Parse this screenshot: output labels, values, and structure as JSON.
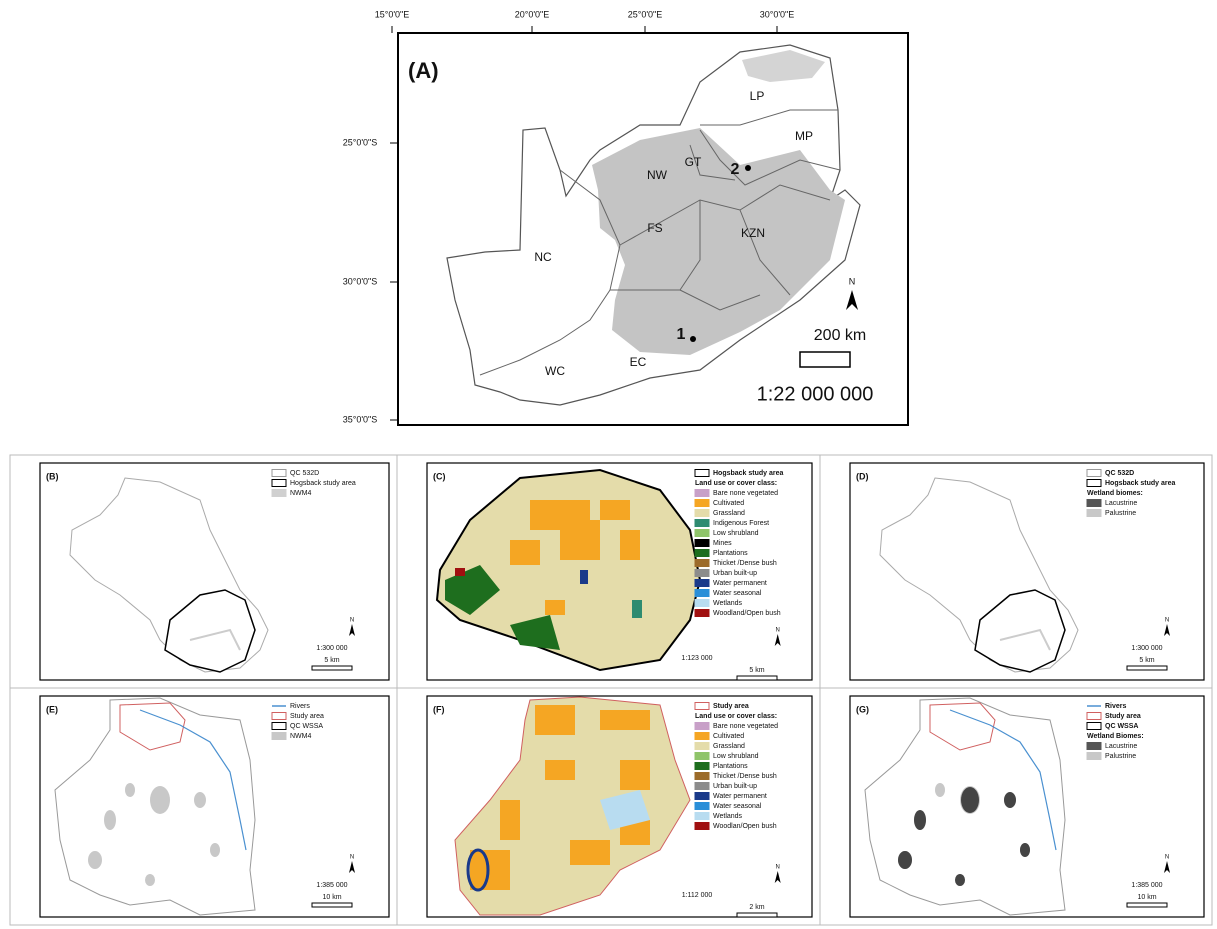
{
  "panel_a": {
    "label": "(A)",
    "lon_ticks": [
      "15°0'0\"E",
      "20°0'0\"E",
      "25°0'0\"E",
      "30°0'0\"E"
    ],
    "lat_ticks": [
      "25°0'0\"S",
      "30°0'0\"S",
      "35°0'0\"S"
    ],
    "places": [
      "LP",
      "MP",
      "GT",
      "NW",
      "FS",
      "KZN",
      "NC",
      "WC",
      "EC"
    ],
    "sites": [
      "1",
      "2"
    ],
    "north": "N",
    "scale_bar": "200 km",
    "scale": "1:22 000 000"
  },
  "panels": [
    {
      "label": "(B)",
      "legend": [
        {
          "text": "QC 532D",
          "color": "#ffffff",
          "stroke": "#999999"
        },
        {
          "text": "Hogsback study area",
          "color": "#ffffff",
          "stroke": "#000000"
        },
        {
          "text": "NWM4",
          "color": "#d0d0d0",
          "stroke": "#d0d0d0"
        }
      ],
      "north": "N",
      "scale": "1:300 000",
      "scale_bar": "5 km"
    },
    {
      "label": "(C)",
      "legend": [
        {
          "text": "Hogsback study area",
          "color": "#ffffff",
          "stroke": "#000000"
        }
      ],
      "classes_title": "Land use or cover class:",
      "classes": [
        {
          "text": "Bare none vegetated",
          "color": "#c8a0c8"
        },
        {
          "text": "Cultivated",
          "color": "#f5a623"
        },
        {
          "text": "Grassland",
          "color": "#e4dcaa"
        },
        {
          "text": "Indigenous Forest",
          "color": "#2e8b70"
        },
        {
          "text": "Low shrubland",
          "color": "#8fc46a"
        },
        {
          "text": "Mines",
          "color": "#000000"
        },
        {
          "text": "Plantations",
          "color": "#1e6e1e"
        },
        {
          "text": "Thicket /Dense bush",
          "color": "#9c6b2a"
        },
        {
          "text": "Urban built-up",
          "color": "#8c8c8c"
        },
        {
          "text": "Water permanent",
          "color": "#1a3a8a"
        },
        {
          "text": "Water seasonal",
          "color": "#2a8fd8"
        },
        {
          "text": "Wetlands",
          "color": "#b8dcf0"
        },
        {
          "text": "Woodland/Open bush",
          "color": "#a01010"
        }
      ],
      "north": "N",
      "scale": "1:123 000",
      "scale_bar": "5 km"
    },
    {
      "label": "(D)",
      "legend": [
        {
          "text": "QC 532D",
          "color": "#ffffff",
          "stroke": "#999999"
        },
        {
          "text": "Hogsback study area",
          "color": "#ffffff",
          "stroke": "#000000"
        }
      ],
      "classes_title": "Wetland biomes:",
      "classes": [
        {
          "text": "Lacustrine",
          "color": "#555555"
        },
        {
          "text": "Palustrine",
          "color": "#c8c8c8"
        }
      ],
      "north": "N",
      "scale": "1:300 000",
      "scale_bar": "5 km"
    },
    {
      "label": "(E)",
      "legend": [
        {
          "text": "Rivers",
          "color": "#4a90d0",
          "line": true
        },
        {
          "text": "Study area",
          "color": "#ffffff",
          "stroke": "#d06060"
        },
        {
          "text": "QC WSSA",
          "color": "#ffffff",
          "stroke": "#000000"
        },
        {
          "text": "NWM4",
          "color": "#c8c8c8",
          "stroke": "#c8c8c8"
        }
      ],
      "north": "N",
      "scale": "1:385 000",
      "scale_bar": "10 km"
    },
    {
      "label": "(F)",
      "legend": [
        {
          "text": "Study area",
          "color": "#ffffff",
          "stroke": "#d06060"
        }
      ],
      "classes_title": "Land use or cover class:",
      "classes": [
        {
          "text": "Bare none vegetated",
          "color": "#c8a0c8"
        },
        {
          "text": "Cultivated",
          "color": "#f5a623"
        },
        {
          "text": "Grassland",
          "color": "#e4dcaa"
        },
        {
          "text": "Low shrubland",
          "color": "#8fc46a"
        },
        {
          "text": "Plantations",
          "color": "#1e6e1e"
        },
        {
          "text": "Thicket /Dense bush",
          "color": "#9c6b2a"
        },
        {
          "text": "Urban built-up",
          "color": "#8c8c8c"
        },
        {
          "text": "Water permanent",
          "color": "#1a3a8a"
        },
        {
          "text": "Water seasonal",
          "color": "#2a8fd8"
        },
        {
          "text": "Wetlands",
          "color": "#b8dcf0"
        },
        {
          "text": "Woodlan/Open bush",
          "color": "#a01010"
        }
      ],
      "north": "N",
      "scale": "1:112 000",
      "scale_bar": "2 km"
    },
    {
      "label": "(G)",
      "legend": [
        {
          "text": "Rivers",
          "color": "#4a90d0",
          "line": true
        },
        {
          "text": "Study area",
          "color": "#ffffff",
          "stroke": "#d06060"
        },
        {
          "text": "QC WSSA",
          "color": "#ffffff",
          "stroke": "#000000"
        }
      ],
      "classes_title": "Wetland Biomes:",
      "classes": [
        {
          "text": "Lacustrine",
          "color": "#555555"
        },
        {
          "text": "Palustrine",
          "color": "#c8c8c8"
        }
      ],
      "north": "N",
      "scale": "1:385 000",
      "scale_bar": "10 km"
    }
  ]
}
